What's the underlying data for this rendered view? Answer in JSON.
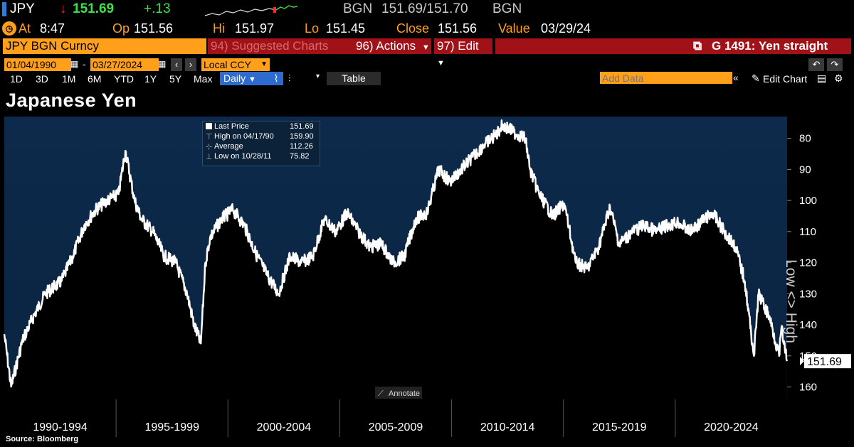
{
  "header": {
    "ticker": "JPY",
    "arrow": "↓",
    "last": "151.69",
    "change": "+.13",
    "source": "BGN",
    "bid_ask": "151.69/151.70",
    "source2": "BGN",
    "at_label": "At",
    "time": "8:47",
    "op_label": "Op",
    "open": "151.56",
    "hi_label": "Hi",
    "high": "151.97",
    "lo_label": "Lo",
    "low": "151.45",
    "close_label": "Close",
    "close": "151.56",
    "value_label": "Value",
    "value_date": "03/29/24"
  },
  "toolbar": {
    "security": "JPY BGN Curncy",
    "suggested": "94) Suggested Charts",
    "actions": "96) Actions",
    "edit": "97) Edit",
    "graph_name": "G 1491: Yen straight"
  },
  "controls": {
    "start_date": "01/04/1990",
    "end_date": "03/27/2024",
    "currency": "Local CCY",
    "ranges": [
      "1D",
      "3D",
      "1M",
      "6M",
      "YTD",
      "1Y",
      "5Y",
      "Max"
    ],
    "period": "Daily",
    "table_label": "Table",
    "add_data_placeholder": "Add Data",
    "edit_chart": "Edit Chart"
  },
  "chart_title": "Japanese Yen",
  "legend": {
    "items": [
      {
        "label": "Last Price",
        "value": "151.69"
      },
      {
        "label": "High on 04/17/90",
        "value": "159.90"
      },
      {
        "label": "Average",
        "value": "112.26"
      },
      {
        "label": "Low on 10/28/11",
        "value": "75.82"
      }
    ]
  },
  "axis_side_label": "Low <> High",
  "annotate_label": "Annotate",
  "last_price_tag": "151.69",
  "footer": "Source: Bloomberg",
  "colors": {
    "orange": "#ff9f1a",
    "green": "#3ee04a",
    "red": "#ff2a2a",
    "toolbar_red": "#a01218",
    "chart_bg_top": "#0d2a4c",
    "line": "#ffffff"
  },
  "chart_data": {
    "type": "line",
    "title": "Japanese Yen",
    "series": [
      {
        "name": "JPY BGN Curncy (Last Price)",
        "x": [
          1990.0,
          1990.3,
          1990.8,
          1991.3,
          1991.8,
          1992.5,
          1993.0,
          1993.5,
          1994.0,
          1994.5,
          1995.0,
          1995.3,
          1995.7,
          1996.0,
          1996.5,
          1997.0,
          1997.5,
          1998.0,
          1998.3,
          1998.6,
          1998.8,
          1999.0,
          1999.5,
          2000.0,
          2000.5,
          2001.0,
          2001.5,
          2002.0,
          2002.5,
          2003.0,
          2003.5,
          2004.0,
          2004.5,
          2005.0,
          2005.5,
          2006.0,
          2006.5,
          2007.0,
          2007.5,
          2008.0,
          2008.5,
          2009.0,
          2009.5,
          2010.0,
          2010.5,
          2011.0,
          2011.5,
          2011.8,
          2012.3,
          2012.8,
          2013.0,
          2013.4,
          2014.0,
          2014.5,
          2015.0,
          2015.5,
          2016.0,
          2016.5,
          2016.9,
          2017.5,
          2018.0,
          2018.5,
          2019.0,
          2019.5,
          2020.0,
          2020.5,
          2021.0,
          2021.5,
          2022.0,
          2022.4,
          2022.8,
          2023.0,
          2023.5,
          2023.9,
          2024.0,
          2024.24
        ],
        "values": [
          143,
          159.9,
          145,
          137,
          130,
          126,
          118,
          108,
          103,
          100,
          98,
          84,
          100,
          106,
          110,
          118,
          120,
          130,
          140,
          146,
          120,
          112,
          106,
          103,
          108,
          117,
          124,
          130,
          118,
          120,
          118,
          106,
          110,
          104,
          110,
          115,
          114,
          120,
          118,
          106,
          104,
          90,
          94,
          90,
          86,
          82,
          79,
          75.82,
          78,
          80,
          90,
          98,
          105,
          101,
          120,
          122,
          115,
          102,
          114,
          110,
          108,
          110,
          108,
          107,
          110,
          107,
          104,
          110,
          115,
          126,
          150,
          130,
          138,
          150,
          141,
          151.69
        ],
        "ylabel": "Low <> High"
      }
    ],
    "x_categories": [
      "1990-1994",
      "1995-1999",
      "2000-2004",
      "2005-2009",
      "2010-2014",
      "2015-2019",
      "2020-2024"
    ],
    "y_ticks": [
      80,
      90,
      100,
      110,
      120,
      130,
      140,
      150,
      160
    ],
    "ylim": [
      73,
      164
    ],
    "y_axis_inverted": true,
    "y_axis_side": "right",
    "last_value": 151.69
  }
}
